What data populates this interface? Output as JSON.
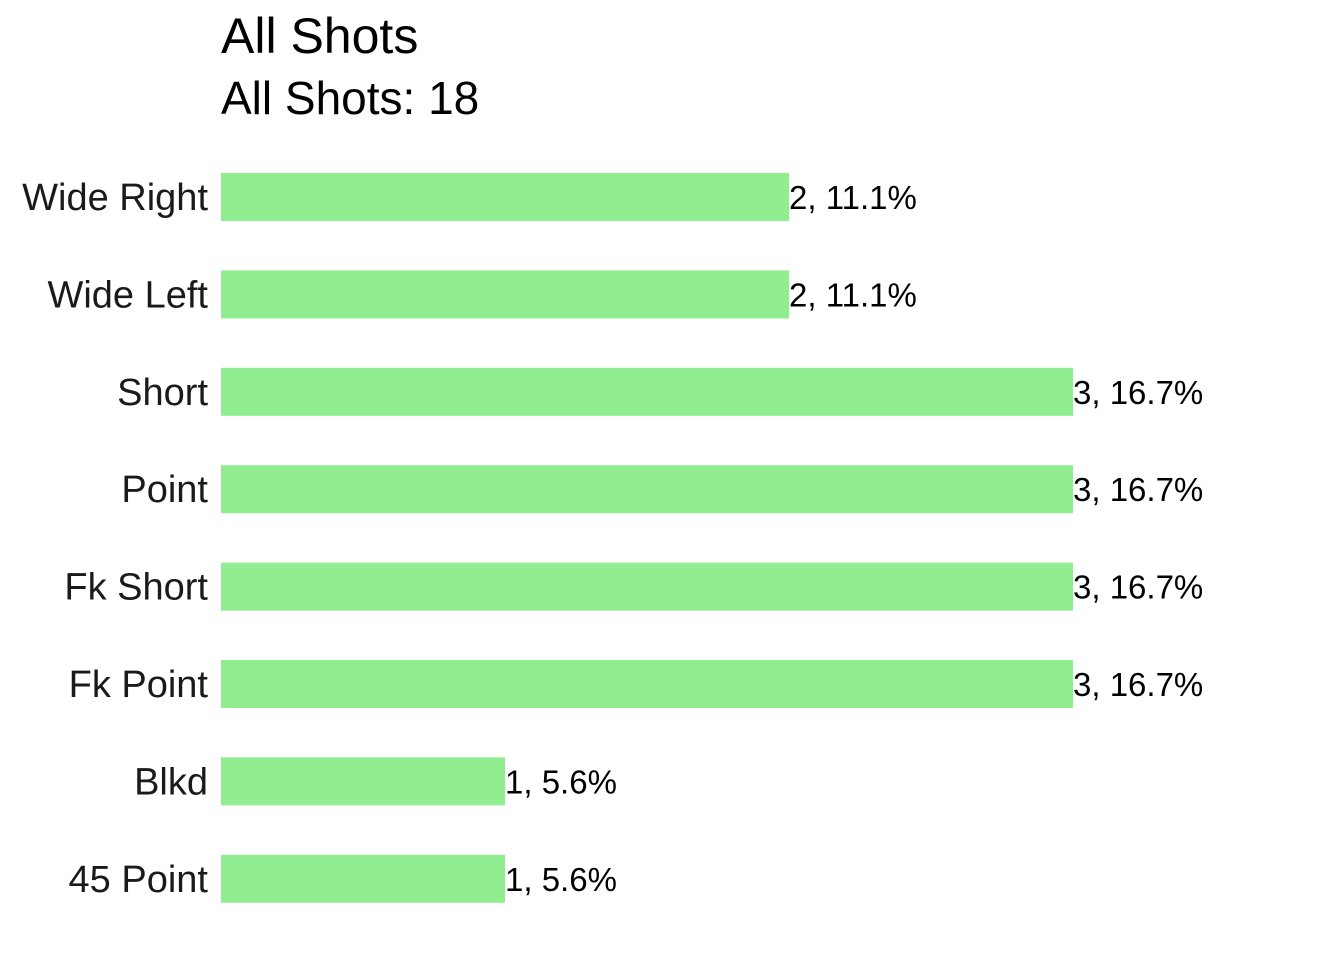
{
  "chart_data": {
    "type": "bar",
    "orientation": "horizontal",
    "title": "All Shots",
    "subtitle": "All Shots: 18",
    "categories": [
      "Wide Right",
      "Wide Left",
      "Short",
      "Point",
      "Fk Short",
      "Fk Point",
      "Blkd",
      "45 Point"
    ],
    "values": [
      2,
      2,
      3,
      3,
      3,
      3,
      1,
      1
    ],
    "data_labels": [
      "2, 11.1%",
      "2, 11.1%",
      "3, 16.7%",
      "3, 16.7%",
      "3, 16.7%",
      "3, 16.7%",
      "1, 5.6%",
      "1, 5.6%"
    ],
    "xlim": [
      0,
      3
    ],
    "grid": false,
    "legend": "none",
    "bar_color": "#90EE90"
  }
}
